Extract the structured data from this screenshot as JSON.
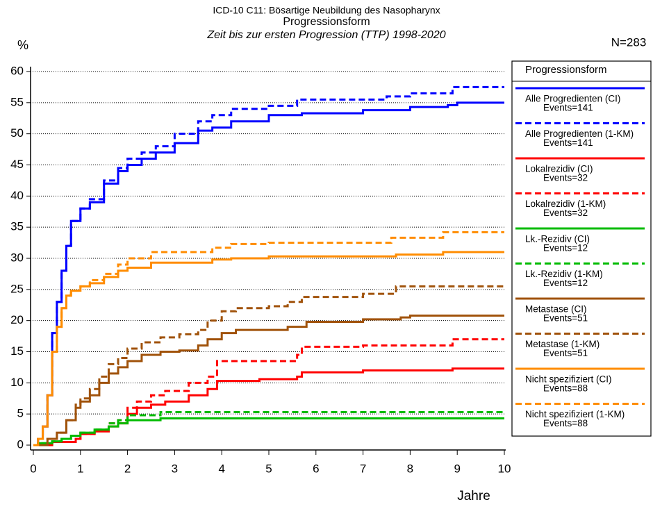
{
  "chart_data": {
    "type": "line",
    "step": true,
    "title": "ICD-10 C11: Bösartige Neubildung des Nasopharynx",
    "subtitle": "Progressionsform",
    "subtitle2": "Zeit bis zur ersten Progression (TTP) 1998-2020",
    "y_label": "%",
    "x_label": "Jahre",
    "n_label": "N=283",
    "legend_title": "Progressionsform",
    "xlim": [
      0,
      10
    ],
    "xticks": [
      0,
      1,
      2,
      3,
      4,
      5,
      6,
      7,
      8,
      9,
      10
    ],
    "ylim": [
      0,
      60
    ],
    "yticks": [
      0,
      5,
      10,
      15,
      20,
      25,
      30,
      35,
      40,
      45,
      50,
      55,
      60
    ],
    "grid": true,
    "series": [
      {
        "name": "Alle Progredienten (CI)",
        "events": "Events=141",
        "color": "#0000ff",
        "dashed": false,
        "x": [
          0,
          0.1,
          0.2,
          0.3,
          0.4,
          0.5,
          0.6,
          0.7,
          0.8,
          1.0,
          1.2,
          1.5,
          1.8,
          2.0,
          2.3,
          2.6,
          3.0,
          3.5,
          3.8,
          4.2,
          5.0,
          5.7,
          7.0,
          8.0,
          8.8,
          9.0,
          10
        ],
        "values": [
          0,
          1,
          3,
          8,
          18,
          23,
          28,
          32,
          36,
          38,
          39,
          42,
          44,
          45,
          46,
          47,
          48.5,
          50.5,
          51,
          52,
          53,
          53.3,
          53.8,
          54.3,
          54.6,
          55,
          55
        ]
      },
      {
        "name": "Alle Progredienten (1-KM)",
        "events": "Events=141",
        "color": "#0000ff",
        "dashed": true,
        "x": [
          0,
          0.1,
          0.2,
          0.3,
          0.4,
          0.5,
          0.6,
          0.7,
          0.8,
          1.0,
          1.2,
          1.5,
          1.8,
          2.0,
          2.3,
          2.6,
          3.0,
          3.5,
          3.8,
          4.2,
          5.0,
          5.6,
          7.5,
          8.0,
          8.9,
          10
        ],
        "values": [
          0,
          1,
          3,
          8,
          18,
          23,
          28,
          32,
          36,
          38,
          39.5,
          42.5,
          44.5,
          46,
          47,
          48,
          50,
          52,
          53,
          54,
          54.5,
          55.5,
          56,
          56.5,
          57.5,
          57.5
        ]
      },
      {
        "name": "Lokalrezidiv (CI)",
        "events": "Events=32",
        "color": "#ff0000",
        "dashed": false,
        "x": [
          0,
          0.4,
          0.9,
          1.0,
          1.3,
          1.6,
          1.8,
          2.0,
          2.2,
          2.5,
          2.8,
          3.3,
          3.7,
          3.9,
          4.8,
          5.6,
          5.7,
          7.0,
          8.9,
          10
        ],
        "values": [
          0,
          0.5,
          1,
          1.8,
          2.2,
          3,
          3.5,
          5,
          6,
          6.5,
          7,
          8,
          9,
          10.3,
          10.6,
          11,
          11.7,
          12,
          12.3,
          12.3
        ]
      },
      {
        "name": "Lokalrezidiv (1-KM)",
        "events": "Events=32",
        "color": "#ff0000",
        "dashed": true,
        "x": [
          0,
          0.4,
          0.9,
          1.0,
          1.3,
          1.6,
          1.8,
          2.0,
          2.2,
          2.5,
          2.8,
          3.3,
          3.7,
          3.9,
          5.6,
          5.7,
          7.0,
          8.9,
          10
        ],
        "values": [
          0,
          0.5,
          1,
          1.8,
          2.5,
          3.5,
          4,
          6,
          7,
          8,
          8.7,
          10,
          11,
          13.5,
          14.5,
          15.8,
          16,
          17,
          17
        ]
      },
      {
        "name": "Lk.-Rezidiv (CI)",
        "events": "Events=12",
        "color": "#00bb00",
        "dashed": false,
        "x": [
          0,
          0.1,
          0.4,
          0.6,
          0.8,
          1.0,
          1.3,
          1.6,
          1.8,
          2.0,
          2.7,
          10
        ],
        "values": [
          0,
          0.3,
          0.6,
          1,
          1.5,
          2,
          2.5,
          3,
          3.5,
          4,
          4.3,
          4.3
        ]
      },
      {
        "name": "Lk.-Rezidiv (1-KM)",
        "events": "Events=12",
        "color": "#00bb00",
        "dashed": true,
        "x": [
          0,
          0.1,
          0.4,
          0.6,
          0.8,
          1.0,
          1.3,
          1.6,
          1.8,
          2.0,
          2.7,
          10
        ],
        "values": [
          0,
          0.3,
          0.6,
          1,
          1.5,
          2,
          2.5,
          3.5,
          4,
          4.8,
          5.3,
          5.3
        ]
      },
      {
        "name": "Metastase (CI)",
        "events": "Events=51",
        "color": "#a0520a",
        "dashed": false,
        "x": [
          0,
          0.3,
          0.5,
          0.7,
          0.9,
          1.0,
          1.2,
          1.4,
          1.6,
          1.8,
          2.0,
          2.3,
          2.7,
          3.1,
          3.5,
          3.7,
          4.0,
          4.3,
          5.4,
          5.8,
          7.0,
          7.8,
          8.0,
          10
        ],
        "values": [
          0,
          1,
          2,
          4,
          6,
          7,
          8,
          10,
          11.5,
          12.5,
          13.5,
          14.5,
          15,
          15.2,
          16,
          17,
          18,
          18.5,
          19,
          19.8,
          20.2,
          20.5,
          20.8,
          20.8
        ]
      },
      {
        "name": "Metastase (1-KM)",
        "events": "Events=51",
        "color": "#a0520a",
        "dashed": true,
        "x": [
          0,
          0.3,
          0.5,
          0.7,
          0.9,
          1.0,
          1.2,
          1.4,
          1.6,
          1.8,
          2.0,
          2.3,
          2.7,
          3.1,
          3.5,
          3.7,
          4.0,
          4.3,
          5.0,
          5.4,
          5.7,
          7.0,
          7.7,
          10
        ],
        "values": [
          0,
          1,
          2,
          4,
          6.5,
          7.5,
          9,
          11,
          13,
          14,
          15.5,
          16.5,
          17.3,
          17.8,
          18.5,
          20,
          21.5,
          22,
          22.3,
          23,
          23.8,
          24.3,
          25.5,
          25.5
        ]
      },
      {
        "name": "Nicht spezifiziert (CI)",
        "events": "Events=88",
        "color": "#ff8c00",
        "dashed": false,
        "x": [
          0,
          0.1,
          0.2,
          0.3,
          0.4,
          0.5,
          0.6,
          0.7,
          0.8,
          1.0,
          1.2,
          1.5,
          1.8,
          2.0,
          2.5,
          3.8,
          4.2,
          5.0,
          7.7,
          8.7,
          10
        ],
        "values": [
          0,
          1,
          3,
          8,
          15,
          19,
          22,
          24,
          24.8,
          25.5,
          26,
          27,
          28,
          28.5,
          29.3,
          29.8,
          30,
          30.3,
          30.6,
          31,
          31
        ]
      },
      {
        "name": "Nicht spezifiziert (1-KM)",
        "events": "Events=88",
        "color": "#ff8c00",
        "dashed": true,
        "x": [
          0,
          0.1,
          0.2,
          0.3,
          0.4,
          0.5,
          0.6,
          0.7,
          0.8,
          1.0,
          1.2,
          1.5,
          1.8,
          2.0,
          2.5,
          3.8,
          4.2,
          5.0,
          7.6,
          8.7,
          10
        ],
        "values": [
          0,
          1,
          3,
          8,
          15,
          19,
          22,
          24,
          24.8,
          25.5,
          26.5,
          27.5,
          29,
          30,
          31,
          31.7,
          32.3,
          32.5,
          33.3,
          34.2,
          34.2
        ]
      }
    ]
  }
}
